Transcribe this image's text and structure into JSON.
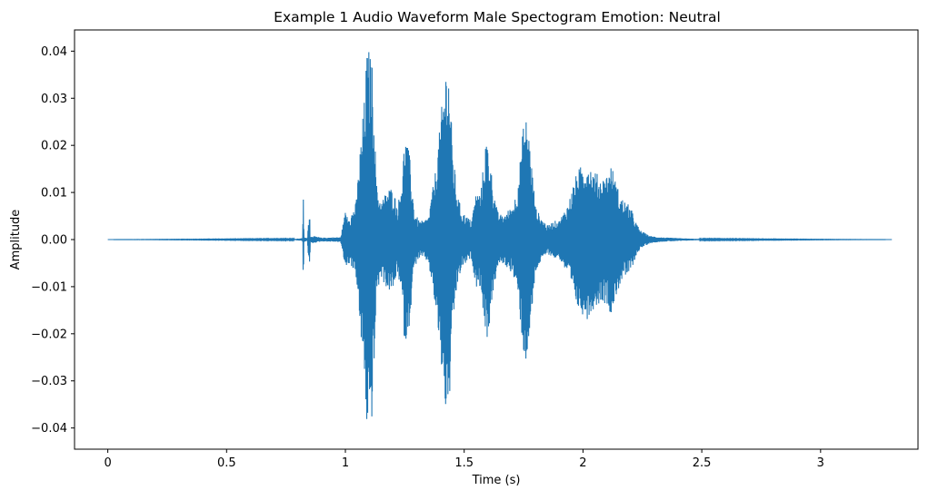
{
  "chart_data": {
    "type": "line",
    "title": "Example 1 Audio Waveform Male Spectogram Emotion: Neutral",
    "xlabel": "Time (s)",
    "ylabel": "Amplitude",
    "xlim": [
      -0.14,
      3.41
    ],
    "ylim": [
      -0.0445,
      0.0445
    ],
    "xticks": [
      0,
      0.5,
      1,
      1.5,
      2,
      2.5,
      3
    ],
    "xtick_labels": [
      "0",
      "0.5",
      "1",
      "1.5",
      "2",
      "2.5",
      "3"
    ],
    "yticks": [
      0.04,
      0.03,
      0.02,
      0.01,
      0.0,
      -0.01,
      -0.02,
      -0.03,
      -0.04
    ],
    "ytick_labels": [
      "0.04",
      "0.03",
      "0.02",
      "0.01",
      "0.00",
      "−0.01",
      "−0.02",
      "−0.03",
      "−0.04"
    ],
    "grid": false,
    "legend": "none",
    "series": [
      {
        "color": "#1f77b4",
        "duration": 3.3,
        "envelope": {
          "t": [
            0.0,
            0.78,
            0.82,
            0.823,
            0.826,
            0.84,
            0.85,
            0.852,
            0.86,
            0.9,
            0.98,
            1.0,
            1.02,
            1.045,
            1.06,
            1.08,
            1.09,
            1.1,
            1.11,
            1.12,
            1.13,
            1.15,
            1.18,
            1.2,
            1.22,
            1.24,
            1.25,
            1.27,
            1.29,
            1.31,
            1.33,
            1.35,
            1.38,
            1.4,
            1.41,
            1.42,
            1.43,
            1.44,
            1.45,
            1.47,
            1.49,
            1.51,
            1.53,
            1.55,
            1.57,
            1.59,
            1.6,
            1.62,
            1.64,
            1.66,
            1.68,
            1.7,
            1.72,
            1.74,
            1.75,
            1.76,
            1.77,
            1.79,
            1.8,
            1.82,
            1.85,
            1.88,
            1.9,
            1.92,
            1.94,
            1.96,
            1.98,
            2.0,
            2.02,
            2.04,
            2.06,
            2.08,
            2.1,
            2.12,
            2.14,
            2.16,
            2.18,
            2.2,
            2.22,
            2.24,
            2.28,
            2.32,
            2.4,
            2.5,
            3.3
          ],
          "amp": [
            0.0,
            0.0001,
            0.0003,
            0.0093,
            0.0005,
            0.0003,
            0.008,
            0.0005,
            0.0008,
            0.0004,
            0.0005,
            0.006,
            0.005,
            0.008,
            0.018,
            0.03,
            0.04,
            0.0405,
            0.0395,
            0.03,
            0.012,
            0.008,
            0.011,
            0.011,
            0.007,
            0.014,
            0.023,
            0.018,
            0.006,
            0.004,
            0.004,
            0.005,
            0.015,
            0.025,
            0.031,
            0.036,
            0.039,
            0.033,
            0.02,
            0.01,
            0.006,
            0.005,
            0.004,
            0.01,
            0.01,
            0.021,
            0.021,
            0.012,
            0.006,
            0.005,
            0.006,
            0.007,
            0.01,
            0.019,
            0.025,
            0.026,
            0.024,
            0.013,
            0.007,
            0.005,
            0.003,
            0.004,
            0.004,
            0.006,
            0.008,
            0.012,
            0.015,
            0.016,
            0.017,
            0.015,
            0.014,
            0.013,
            0.014,
            0.016,
            0.012,
            0.009,
            0.008,
            0.007,
            0.004,
            0.002,
            0.0008,
            0.0005,
            0.0003,
            0.0001,
            0.0
          ]
        }
      }
    ]
  }
}
